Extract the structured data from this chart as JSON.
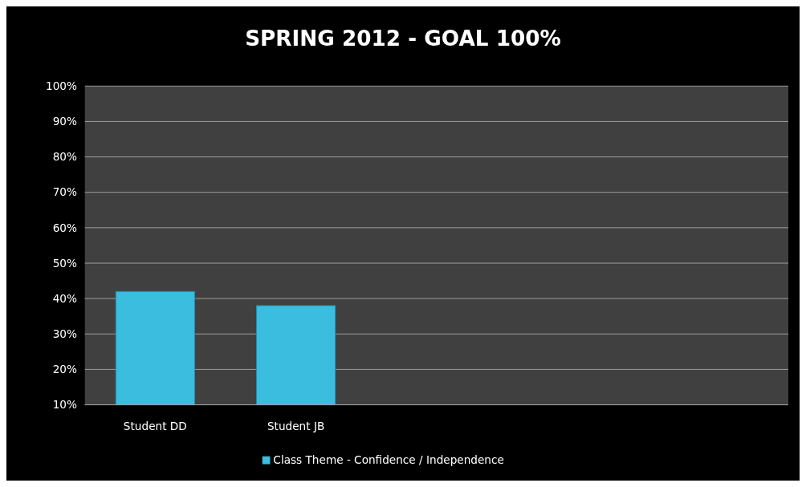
{
  "chart_data": {
    "type": "bar",
    "title": "SPRING 2012 - GOAL 100%",
    "categories": [
      "Student DD",
      "Student JB",
      null,
      null,
      null
    ],
    "series": [
      {
        "name": "Class Theme - Confidence / Independence",
        "color": "#3bbde0",
        "values": [
          42,
          38,
          null,
          null,
          null
        ]
      }
    ],
    "ylim": [
      10,
      100
    ],
    "yticks": [
      {
        "value": 10,
        "label": "10%"
      },
      {
        "value": 20,
        "label": "20%"
      },
      {
        "value": 30,
        "label": "30%"
      },
      {
        "value": 40,
        "label": "40%"
      },
      {
        "value": 50,
        "label": "50%"
      },
      {
        "value": 60,
        "label": "60%"
      },
      {
        "value": 70,
        "label": "70%"
      },
      {
        "value": 80,
        "label": "80%"
      },
      {
        "value": 90,
        "label": "90%"
      },
      {
        "value": 100,
        "label": "100%"
      }
    ],
    "grid": "y",
    "legend": "bottom"
  }
}
